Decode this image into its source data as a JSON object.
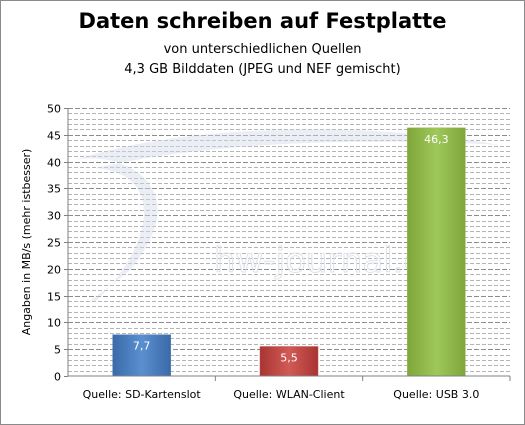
{
  "chart_data": {
    "type": "bar",
    "title": "Daten schreiben auf Festplatte",
    "subtitle": [
      "von unterschiedlichen Quellen",
      "4,3 GB Bilddaten (JPEG und NEF gemischt)"
    ],
    "ylabel": "Angaben in MB/s (mehr istbesser)",
    "xlabel": "",
    "ylim": [
      0,
      50
    ],
    "yticks": [
      0,
      5,
      10,
      15,
      20,
      25,
      30,
      35,
      40,
      45,
      50
    ],
    "minor_gridlines": true,
    "legend": "none",
    "categories": [
      "Quelle: SD-Kartenslot",
      "Quelle: WLAN-Client",
      "Quelle: USB 3.0"
    ],
    "values": [
      7.7,
      5.5,
      46.3
    ],
    "value_labels": [
      "7,7",
      "5,5",
      "46,3"
    ],
    "colors": [
      "#4f81bd",
      "#c0504d",
      "#9bbb59"
    ],
    "watermark": "hw-journal.de"
  }
}
